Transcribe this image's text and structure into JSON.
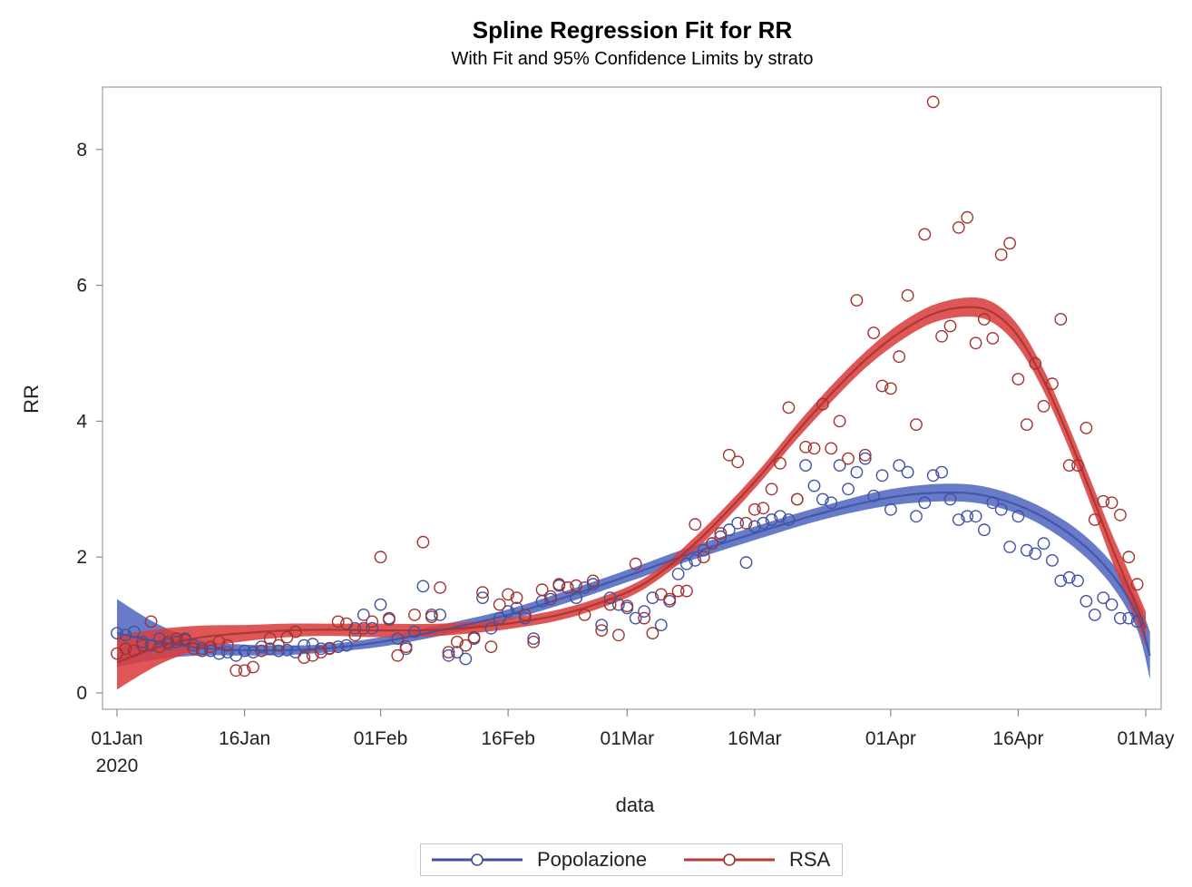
{
  "chart_data": {
    "type": "scatter",
    "title": "Spline Regression Fit for RR",
    "subtitle": "With Fit and 95% Confidence Limits by strato",
    "xlabel": "data",
    "ylabel": "RR",
    "x_unit": "day_of_2020",
    "xlim": [
      -1.7,
      123.5
    ],
    "ylim": [
      -0.2,
      8.9
    ],
    "x_ticks": [
      {
        "day": 0,
        "label": "01Jan",
        "sublabel": "2020"
      },
      {
        "day": 15,
        "label": "16Jan"
      },
      {
        "day": 31,
        "label": "01Feb"
      },
      {
        "day": 46,
        "label": "16Feb"
      },
      {
        "day": 60,
        "label": "01Mar"
      },
      {
        "day": 75,
        "label": "16Mar"
      },
      {
        "day": 91,
        "label": "01Apr"
      },
      {
        "day": 106,
        "label": "16Apr"
      },
      {
        "day": 121,
        "label": "01May"
      }
    ],
    "y_ticks": [
      0,
      2,
      4,
      6,
      8
    ],
    "grid": false,
    "legend": {
      "placement": "bottom",
      "entries": [
        "Popolazione",
        "RSA"
      ]
    },
    "series": [
      {
        "name": "Popolazione",
        "color": "#3f51a3",
        "band_color": "#5a70c4",
        "fit": {
          "day": [
            0,
            5,
            10,
            15,
            20,
            25,
            31,
            38,
            46,
            53,
            60,
            67,
            75,
            83,
            91,
            98,
            103,
            108,
            113,
            117,
            120,
            121.5
          ],
          "value": [
            0.88,
            0.75,
            0.66,
            0.63,
            0.63,
            0.66,
            0.75,
            0.92,
            1.15,
            1.42,
            1.72,
            2.03,
            2.35,
            2.65,
            2.88,
            2.95,
            2.88,
            2.65,
            2.25,
            1.75,
            1.15,
            0.55
          ],
          "lower": [
            0.38,
            0.5,
            0.55,
            0.55,
            0.56,
            0.6,
            0.68,
            0.84,
            1.07,
            1.33,
            1.63,
            1.93,
            2.25,
            2.55,
            2.76,
            2.82,
            2.75,
            2.52,
            2.1,
            1.58,
            0.93,
            0.2
          ],
          "upper": [
            1.38,
            1.0,
            0.77,
            0.71,
            0.7,
            0.72,
            0.82,
            1.0,
            1.23,
            1.51,
            1.81,
            2.13,
            2.45,
            2.75,
            3.0,
            3.08,
            3.01,
            2.78,
            2.4,
            1.92,
            1.37,
            0.9
          ]
        },
        "points": {
          "day": [
            0,
            1,
            2,
            3,
            4,
            5,
            6,
            7,
            8,
            9,
            10,
            11,
            12,
            13,
            14,
            15,
            16,
            17,
            18,
            19,
            20,
            21,
            22,
            23,
            24,
            25,
            26,
            27,
            28,
            29,
            30,
            31,
            32,
            33,
            34,
            35,
            36,
            37,
            38,
            39,
            40,
            41,
            42,
            43,
            44,
            45,
            46,
            47,
            48,
            49,
            50,
            51,
            52,
            53,
            54,
            55,
            56,
            57,
            58,
            59,
            60,
            61,
            62,
            63,
            64,
            65,
            66,
            67,
            68,
            69,
            70,
            71,
            72,
            73,
            74,
            75,
            76,
            77,
            78,
            79,
            80,
            81,
            82,
            83,
            84,
            85,
            86,
            87,
            88,
            89,
            90,
            91,
            92,
            93,
            94,
            95,
            96,
            97,
            98,
            99,
            100,
            101,
            102,
            103,
            104,
            105,
            106,
            107,
            108,
            109,
            110,
            111,
            112,
            113,
            114,
            115,
            116,
            117,
            118,
            119,
            120
          ],
          "value": [
            0.88,
            0.85,
            0.9,
            0.75,
            0.7,
            0.8,
            0.72,
            0.75,
            0.8,
            0.7,
            0.65,
            0.62,
            0.58,
            0.6,
            0.55,
            0.62,
            0.6,
            0.68,
            0.65,
            0.62,
            0.63,
            0.6,
            0.7,
            0.72,
            0.65,
            0.66,
            0.68,
            0.7,
            0.95,
            1.15,
            0.95,
            1.3,
            1.1,
            0.8,
            0.65,
            0.9,
            1.57,
            1.15,
            1.15,
            0.55,
            0.6,
            0.5,
            0.8,
            1.4,
            0.95,
            1.1,
            1.2,
            1.25,
            1.1,
            0.8,
            1.35,
            1.38,
            1.58,
            1.55,
            1.4,
            1.55,
            1.6,
            1.0,
            1.4,
            1.3,
            1.25,
            1.1,
            1.2,
            1.4,
            1.0,
            1.35,
            1.75,
            1.9,
            1.95,
            2.1,
            2.2,
            2.3,
            2.4,
            2.5,
            1.92,
            2.45,
            2.5,
            2.55,
            2.6,
            2.55,
            2.85,
            3.35,
            3.05,
            2.85,
            2.8,
            3.35,
            3.0,
            3.25,
            3.45,
            2.9,
            3.2,
            2.7,
            3.35,
            3.25,
            2.6,
            2.8,
            3.2,
            3.25,
            2.85,
            2.55,
            2.6,
            2.6,
            2.4,
            2.8,
            2.7,
            2.15,
            2.6,
            2.1,
            2.05,
            2.2,
            1.95,
            1.65,
            1.7,
            1.65,
            1.35,
            1.15,
            1.4,
            1.3,
            1.1,
            1.1,
            1.05
          ]
        }
      },
      {
        "name": "RSA",
        "color": "#a3322f",
        "band_color": "#db3f3f",
        "fit": {
          "day": [
            0,
            5,
            10,
            15,
            20,
            25,
            31,
            38,
            46,
            53,
            60,
            64,
            68,
            72,
            76,
            80,
            84,
            88,
            92,
            96,
            100,
            103,
            106,
            109,
            112,
            115,
            117,
            119,
            121
          ],
          "value": [
            0.45,
            0.68,
            0.82,
            0.88,
            0.92,
            0.93,
            0.92,
            0.93,
            1.02,
            1.18,
            1.48,
            1.78,
            2.2,
            2.7,
            3.25,
            3.85,
            4.4,
            4.9,
            5.3,
            5.58,
            5.68,
            5.6,
            5.25,
            4.6,
            3.75,
            2.8,
            2.15,
            1.55,
            0.95
          ],
          "lower": [
            0.05,
            0.42,
            0.65,
            0.76,
            0.82,
            0.84,
            0.82,
            0.84,
            0.94,
            1.1,
            1.4,
            1.7,
            2.1,
            2.6,
            3.15,
            3.74,
            4.28,
            4.78,
            5.17,
            5.45,
            5.54,
            5.45,
            5.09,
            4.44,
            3.59,
            2.62,
            1.95,
            1.32,
            0.7
          ],
          "upper": [
            0.85,
            0.94,
            0.99,
            1.0,
            1.02,
            1.02,
            1.02,
            1.02,
            1.1,
            1.26,
            1.56,
            1.86,
            2.3,
            2.8,
            3.35,
            3.96,
            4.52,
            5.02,
            5.43,
            5.71,
            5.82,
            5.75,
            5.41,
            4.76,
            3.91,
            2.98,
            2.35,
            1.78,
            1.2
          ]
        },
        "points": {
          "day": [
            0,
            1,
            2,
            3,
            4,
            5,
            6,
            7,
            8,
            9,
            10,
            11,
            12,
            13,
            14,
            15,
            16,
            17,
            18,
            19,
            20,
            21,
            22,
            23,
            24,
            25,
            26,
            27,
            28,
            29,
            30,
            31,
            32,
            33,
            34,
            35,
            36,
            37,
            38,
            39,
            40,
            41,
            42,
            43,
            44,
            45,
            46,
            47,
            48,
            49,
            50,
            51,
            52,
            53,
            54,
            55,
            56,
            57,
            58,
            59,
            60,
            61,
            62,
            63,
            64,
            65,
            66,
            67,
            68,
            69,
            70,
            71,
            72,
            73,
            74,
            75,
            76,
            77,
            78,
            79,
            80,
            81,
            82,
            83,
            84,
            85,
            86,
            87,
            88,
            89,
            90,
            91,
            92,
            93,
            94,
            95,
            96,
            97,
            98,
            99,
            100,
            101,
            102,
            103,
            104,
            105,
            106,
            107,
            108,
            109,
            110,
            111,
            112,
            113,
            114,
            115,
            116,
            117,
            118,
            119,
            120
          ],
          "value": [
            0.58,
            0.65,
            0.62,
            0.7,
            1.05,
            0.68,
            0.75,
            0.8,
            0.78,
            0.65,
            0.62,
            0.68,
            0.75,
            0.7,
            0.33,
            0.33,
            0.38,
            0.62,
            0.8,
            0.7,
            0.82,
            0.9,
            0.52,
            0.55,
            0.6,
            0.65,
            1.05,
            1.02,
            0.85,
            0.95,
            1.05,
            2.0,
            1.08,
            0.55,
            0.68,
            1.15,
            2.22,
            1.12,
            1.55,
            0.6,
            0.75,
            0.7,
            0.82,
            1.48,
            0.68,
            1.3,
            1.45,
            1.4,
            1.15,
            0.75,
            1.52,
            1.42,
            1.6,
            1.55,
            1.58,
            1.15,
            1.65,
            0.92,
            1.3,
            0.85,
            1.28,
            1.9,
            1.1,
            0.88,
            1.45,
            1.38,
            1.5,
            1.5,
            2.48,
            2.0,
            2.2,
            2.35,
            3.5,
            3.4,
            2.5,
            2.7,
            2.72,
            3.0,
            3.38,
            4.2,
            2.85,
            3.62,
            3.6,
            4.25,
            3.6,
            4.0,
            3.45,
            5.78,
            3.5,
            5.3,
            4.52,
            4.48,
            4.95,
            5.85,
            3.95,
            6.75,
            8.7,
            5.25,
            5.4,
            6.85,
            7.0,
            5.15,
            5.5,
            5.22,
            6.45,
            6.62,
            4.62,
            3.95,
            4.85,
            4.22,
            4.55,
            5.5,
            3.35,
            3.35,
            3.9,
            2.55,
            2.82,
            2.8,
            2.62,
            2.0,
            1.6
          ]
        }
      }
    ]
  }
}
